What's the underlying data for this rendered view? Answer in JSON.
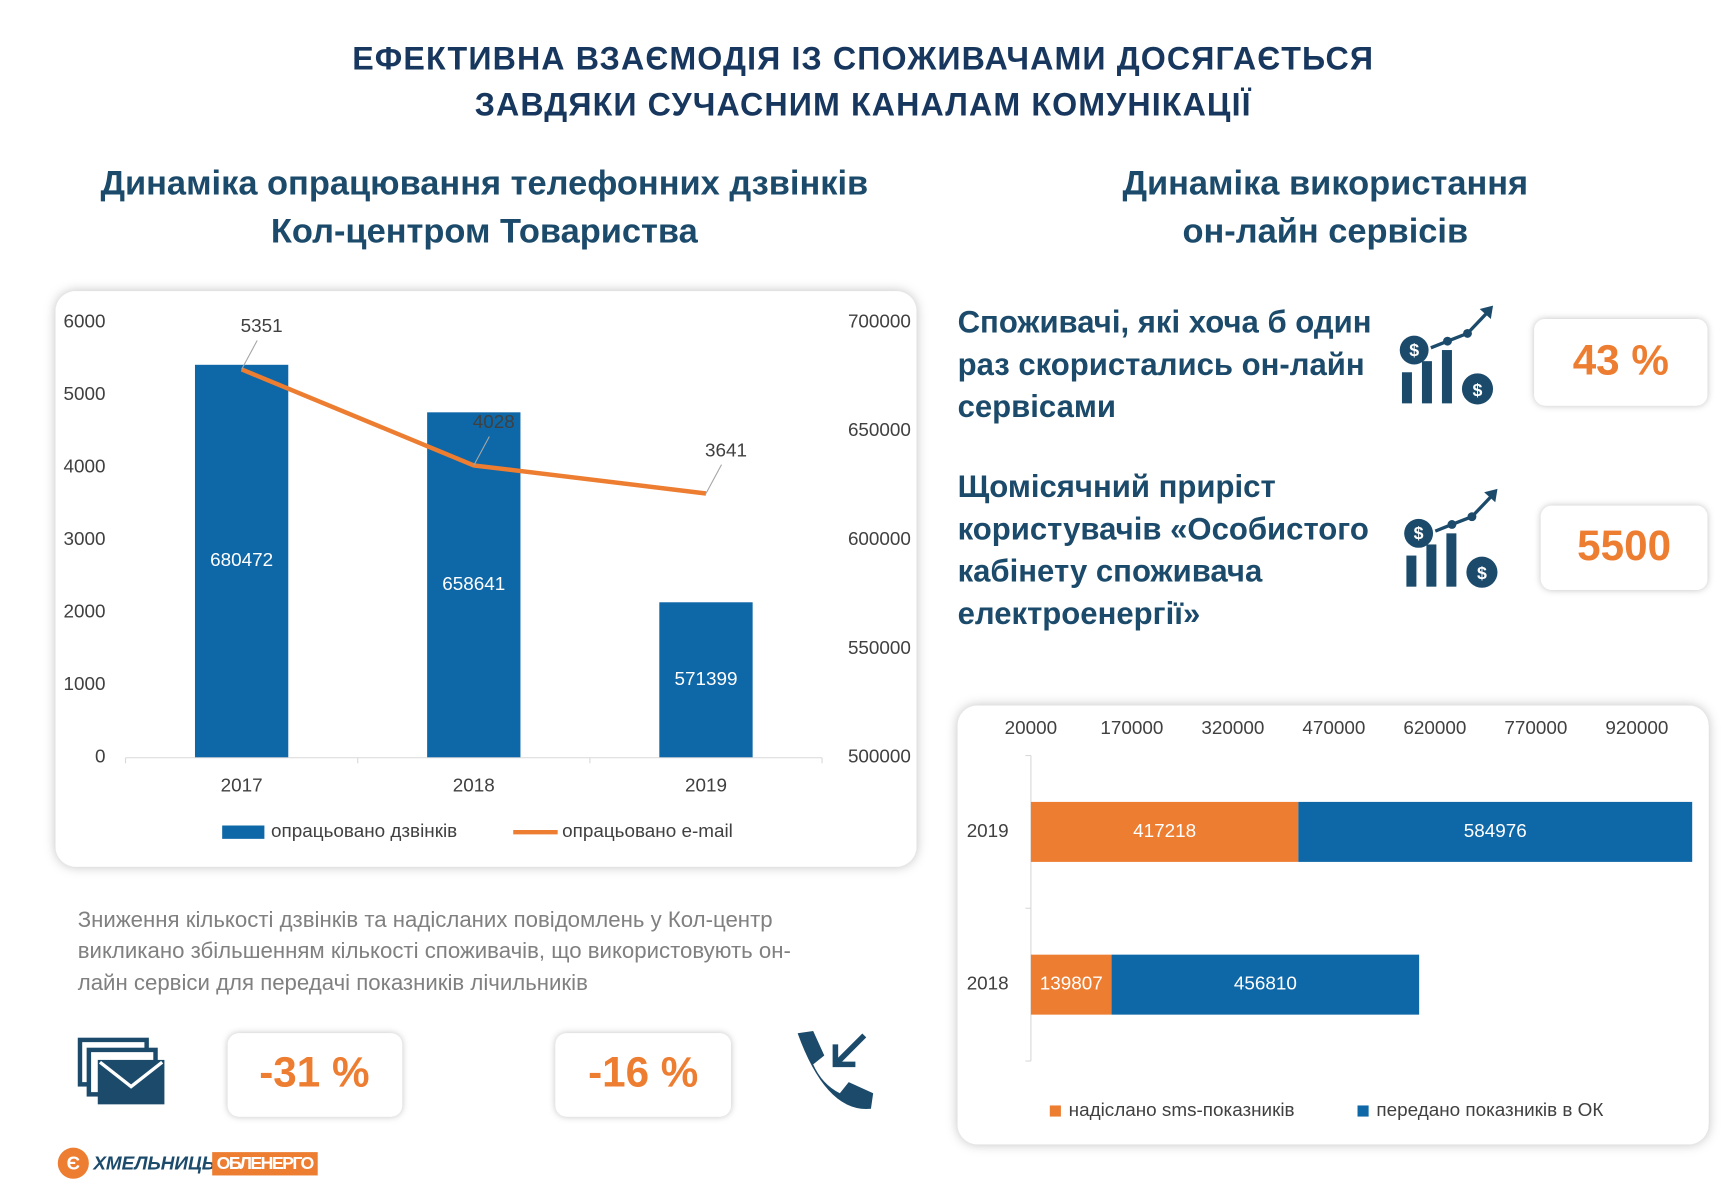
{
  "title": [
    "ЕФЕКТИВНА ВЗАЄМОДІЯ ІЗ СПОЖИВАЧАМИ ДОСЯГАЄТЬСЯ",
    "ЗАВДЯКИ СУЧАСНИМ КАНАЛАМ КОМУНІКАЦІЇ"
  ],
  "left_heading": [
    "Динаміка опрацювання телефонних дзвінків",
    "Кол-центром Товариства"
  ],
  "right_heading": [
    "Динаміка використання",
    "он-лайн сервісів"
  ],
  "stats": [
    {
      "label": [
        "Споживачі, які хоча б один",
        "раз скористались он-лайн",
        "сервісами"
      ],
      "value": "43 %"
    },
    {
      "label": [
        "Щомісячний приріст",
        "користувачів «Особистого",
        "кабінету споживача",
        "електроенергії»"
      ],
      "value": "5500"
    }
  ],
  "note": [
    "Зниження кількості дзвінків та надісланих повідомлень у Кол-центр",
    "викликано збільшенням кількості споживачів, що використовують он-",
    "лайн сервіси для передачі показників лічильників"
  ],
  "changes": [
    "-31 %",
    "-16 %"
  ],
  "logo": [
    "ХМЕЛЬНИЦЬК",
    "ОБЛЕНЕРГО"
  ],
  "chart_data": [
    {
      "type": "bar",
      "categories": [
        "2017",
        "2018",
        "2019"
      ],
      "series": [
        {
          "name": "опрацьовано дзвінків",
          "type": "bar",
          "axis": "y2",
          "color": "#0e67a6",
          "values": [
            680472,
            658641,
            571399
          ]
        },
        {
          "name": "опрацьовано e-mail",
          "type": "line",
          "axis": "y",
          "color": "#ed7d31",
          "values": [
            5351,
            4028,
            3641
          ]
        }
      ],
      "ylim": [
        0,
        6000
      ],
      "yticks": [
        0,
        1000,
        2000,
        3000,
        4000,
        5000,
        6000
      ],
      "y2lim": [
        500000,
        700000
      ],
      "y2ticks": [
        500000,
        550000,
        600000,
        650000,
        700000
      ],
      "legend": "bottom"
    },
    {
      "type": "barh",
      "stacked": true,
      "categories": [
        "2019",
        "2018"
      ],
      "series": [
        {
          "name": "надіслано sms-показників",
          "color": "#ed7d31",
          "values": [
            417218,
            139807
          ]
        },
        {
          "name": "передано показників в ОК",
          "color": "#0e67a6",
          "values": [
            584976,
            456810
          ]
        }
      ],
      "xlim": [
        20000,
        1010000
      ],
      "xticks": [
        20000,
        170000,
        320000,
        470000,
        620000,
        770000,
        920000
      ],
      "legend": "bottom"
    }
  ]
}
